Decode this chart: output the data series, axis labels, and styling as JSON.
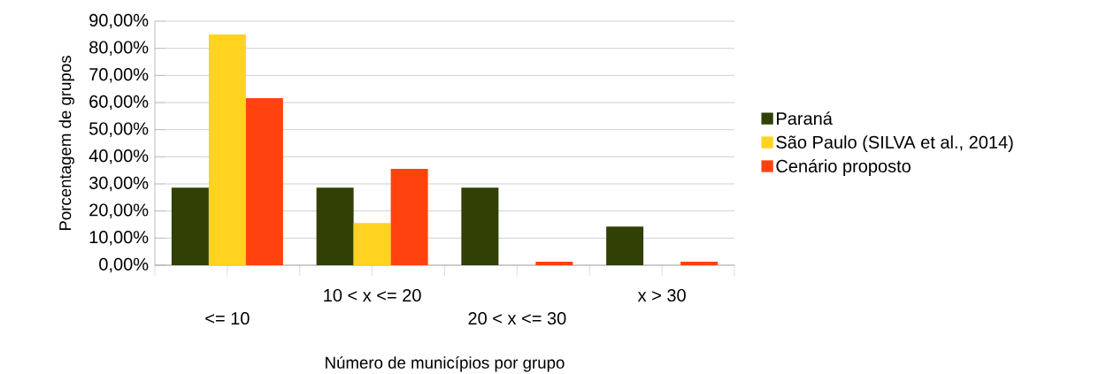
{
  "chart_data": {
    "type": "bar",
    "xlabel": "Número de municípios por grupo",
    "ylabel": "Porcentagem de grupos",
    "categories": [
      "<= 10",
      "10 < x <= 20",
      "20 < x <= 30",
      "x > 30"
    ],
    "series": [
      {
        "name": "Paraná",
        "color": "#314004",
        "values": [
          28.6,
          28.6,
          28.6,
          14.3
        ]
      },
      {
        "name": "São Paulo (SILVA et al., 2014)",
        "color": "#ffd320",
        "values": [
          85.1,
          15.6,
          0,
          0
        ]
      },
      {
        "name": "Cenário proposto",
        "color": "#ff420e",
        "values": [
          61.6,
          35.5,
          1.3,
          1.3
        ]
      }
    ],
    "ylim": [
      0,
      90
    ],
    "yticks": [
      {
        "value": 0,
        "label": "0,00%"
      },
      {
        "value": 10,
        "label": "10,00%"
      },
      {
        "value": 20,
        "label": "20,00%"
      },
      {
        "value": 30,
        "label": "30,00%"
      },
      {
        "value": 40,
        "label": "40,00%"
      },
      {
        "value": 50,
        "label": "50,00%"
      },
      {
        "value": 60,
        "label": "60,00%"
      },
      {
        "value": 70,
        "label": "70,00%"
      },
      {
        "value": 80,
        "label": "80,00%"
      },
      {
        "value": 90,
        "label": "90,00%"
      }
    ],
    "grid": "y",
    "legend": "right"
  }
}
